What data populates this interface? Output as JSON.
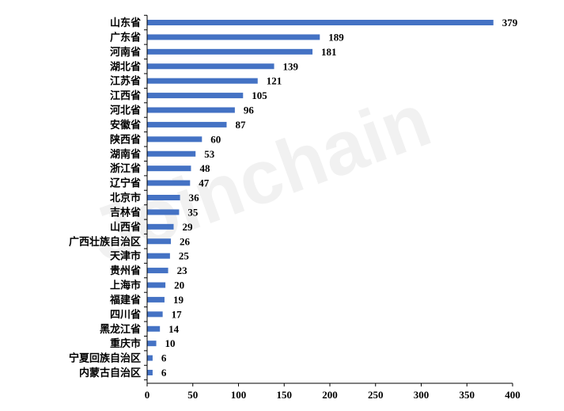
{
  "chart_data": {
    "type": "bar",
    "orientation": "horizontal",
    "categories": [
      "山东省",
      "广东省",
      "河南省",
      "湖北省",
      "江苏省",
      "江西省",
      "河北省",
      "安徽省",
      "陕西省",
      "湖南省",
      "浙江省",
      "辽宁省",
      "北京市",
      "吉林省",
      "山西省",
      "广西壮族自治区",
      "天津市",
      "贵州省",
      "上海市",
      "福建省",
      "四川省",
      "黑龙江省",
      "重庆市",
      "宁夏回族自治区",
      "内蒙古自治区"
    ],
    "values": [
      379,
      189,
      181,
      139,
      121,
      105,
      96,
      87,
      60,
      53,
      48,
      47,
      36,
      35,
      29,
      26,
      25,
      23,
      20,
      19,
      17,
      14,
      10,
      6,
      6
    ],
    "xlim": [
      0,
      400
    ],
    "xticks": [
      "0",
      "50",
      "100",
      "150",
      "200",
      "250",
      "300",
      "350",
      "400"
    ],
    "bar_color": "#4472C4",
    "grid": false,
    "legend": "none",
    "watermark": "Joinchain"
  }
}
